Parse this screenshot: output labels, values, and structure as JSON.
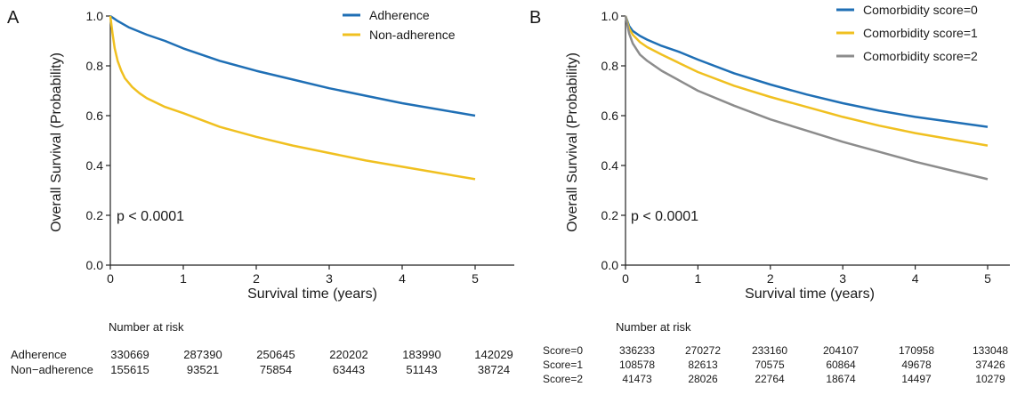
{
  "figure": {
    "panels": [
      {
        "label": "A",
        "ylabel": "Overall Survival (Probability)",
        "xlabel": "Survival time (years)",
        "pvalue": "p < 0.0001",
        "risk_title": "Number at risk"
      },
      {
        "label": "B",
        "ylabel": "Overall Survival (Probability)",
        "xlabel": "Survival time (years)",
        "pvalue": "p < 0.0001",
        "risk_title": "Number at risk"
      }
    ]
  },
  "chart_data": [
    {
      "type": "line",
      "title": "",
      "xlabel": "Survival time (years)",
      "ylabel": "Overall Survival (Probability)",
      "xlim": [
        0,
        5
      ],
      "ylim": [
        0,
        1
      ],
      "xticks": [
        "0",
        "1",
        "2",
        "3",
        "4",
        "5"
      ],
      "yticks": [
        "0.0",
        "0.2",
        "0.4",
        "0.6",
        "0.8",
        "1.0"
      ],
      "grid": false,
      "legend_position": "top-right",
      "annotation": "p < 0.0001",
      "series": [
        {
          "name": "Adherence",
          "color": "#1f6fb5",
          "x": [
            0,
            0.1,
            0.25,
            0.5,
            0.75,
            1,
            1.5,
            2,
            2.5,
            3,
            3.5,
            4,
            4.5,
            5
          ],
          "y": [
            1.0,
            0.98,
            0.955,
            0.925,
            0.9,
            0.87,
            0.82,
            0.78,
            0.745,
            0.71,
            0.68,
            0.65,
            0.625,
            0.6
          ]
        },
        {
          "name": "Non-adherence",
          "color": "#f0c020",
          "x": [
            0,
            0.03,
            0.06,
            0.1,
            0.15,
            0.2,
            0.3,
            0.4,
            0.5,
            0.75,
            1,
            1.5,
            2,
            2.5,
            3,
            3.5,
            4,
            4.5,
            5
          ],
          "y": [
            1.0,
            0.93,
            0.87,
            0.82,
            0.78,
            0.75,
            0.715,
            0.69,
            0.67,
            0.635,
            0.61,
            0.555,
            0.515,
            0.48,
            0.45,
            0.42,
            0.395,
            0.37,
            0.345
          ]
        }
      ],
      "risk_table": {
        "title": "Number at risk",
        "time_points": [
          0,
          1,
          2,
          3,
          4,
          5
        ],
        "rows": [
          {
            "label": "Adherence",
            "values": [
              "330669",
              "287390",
              "250645",
              "220202",
              "183990",
              "142029"
            ]
          },
          {
            "label": "Non−adherence",
            "values": [
              "155615",
              "93521",
              "75854",
              "63443",
              "51143",
              "38724"
            ]
          }
        ]
      }
    },
    {
      "type": "line",
      "title": "",
      "xlabel": "Survival time (years)",
      "ylabel": "Overall Survival (Probability)",
      "xlim": [
        0,
        5
      ],
      "ylim": [
        0,
        1
      ],
      "xticks": [
        "0",
        "1",
        "2",
        "3",
        "4",
        "5"
      ],
      "yticks": [
        "0.0",
        "0.2",
        "0.4",
        "0.6",
        "0.8",
        "1.0"
      ],
      "grid": false,
      "legend_position": "top-right",
      "annotation": "p < 0.0001",
      "series": [
        {
          "name": "Comorbidity score=0",
          "color": "#1f6fb5",
          "x": [
            0,
            0.05,
            0.1,
            0.2,
            0.3,
            0.5,
            0.75,
            1,
            1.5,
            2,
            2.5,
            3,
            3.5,
            4,
            4.5,
            5
          ],
          "y": [
            1.0,
            0.96,
            0.94,
            0.92,
            0.905,
            0.88,
            0.855,
            0.825,
            0.77,
            0.725,
            0.685,
            0.65,
            0.62,
            0.595,
            0.575,
            0.555
          ]
        },
        {
          "name": "Comorbidity score=1",
          "color": "#f0c020",
          "x": [
            0,
            0.05,
            0.1,
            0.2,
            0.3,
            0.5,
            0.75,
            1,
            1.5,
            2,
            2.5,
            3,
            3.5,
            4,
            4.5,
            5
          ],
          "y": [
            1.0,
            0.95,
            0.925,
            0.895,
            0.875,
            0.845,
            0.81,
            0.775,
            0.72,
            0.675,
            0.635,
            0.595,
            0.56,
            0.53,
            0.505,
            0.48
          ]
        },
        {
          "name": "Comorbidity score=2",
          "color": "#8c8c8c",
          "x": [
            0,
            0.05,
            0.1,
            0.2,
            0.3,
            0.5,
            0.75,
            1,
            1.5,
            2,
            2.5,
            3,
            3.5,
            4,
            4.5,
            5
          ],
          "y": [
            1.0,
            0.93,
            0.89,
            0.845,
            0.82,
            0.78,
            0.74,
            0.7,
            0.64,
            0.585,
            0.54,
            0.495,
            0.455,
            0.415,
            0.38,
            0.345
          ]
        }
      ],
      "risk_table": {
        "title": "Number at risk",
        "time_points": [
          0,
          1,
          2,
          3,
          4,
          5
        ],
        "rows": [
          {
            "label": "Score=0",
            "values": [
              "336233",
              "270272",
              "233160",
              "204107",
              "170958",
              "133048"
            ]
          },
          {
            "label": "Score=1",
            "values": [
              "108578",
              "82613",
              "70575",
              "60864",
              "49678",
              "37426"
            ]
          },
          {
            "label": "Score=2",
            "values": [
              "41473",
              "28026",
              "22764",
              "18674",
              "14497",
              "10279"
            ]
          }
        ]
      }
    }
  ]
}
